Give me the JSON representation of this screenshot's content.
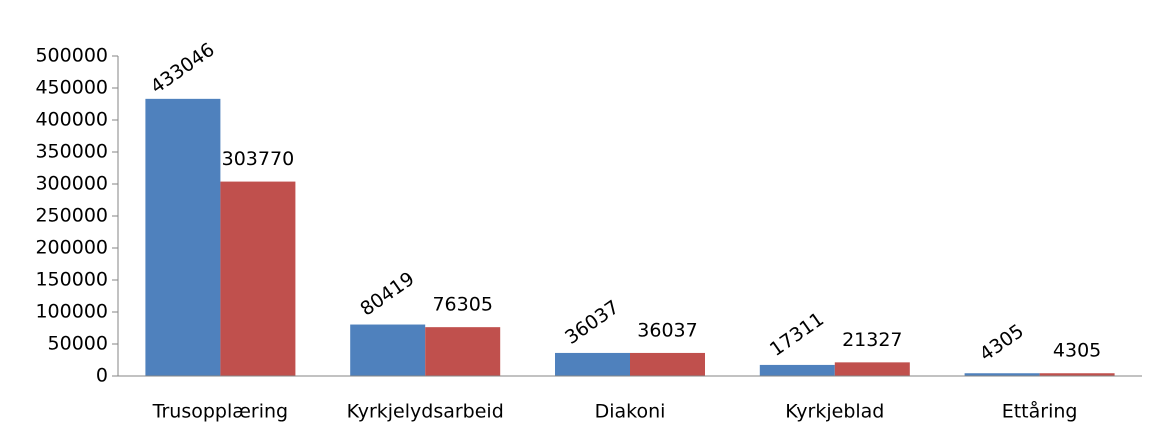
{
  "chart_data": {
    "type": "bar",
    "categories": [
      "Trusopplæring",
      "Kyrkjelydsarbeid",
      "Diakoni",
      "Kyrkjeblad",
      "Ettåring"
    ],
    "series": [
      {
        "color": "#4f81bd",
        "values": [
          433046,
          80419,
          36037,
          17311,
          4305
        ]
      },
      {
        "color": "#c0504d",
        "values": [
          303770,
          76305,
          36037,
          21327,
          4305
        ]
      }
    ],
    "ylim": [
      0,
      500000
    ],
    "yticks": [
      0,
      50000,
      100000,
      150000,
      200000,
      250000,
      300000,
      350000,
      400000,
      450000,
      500000
    ],
    "grid": false
  }
}
